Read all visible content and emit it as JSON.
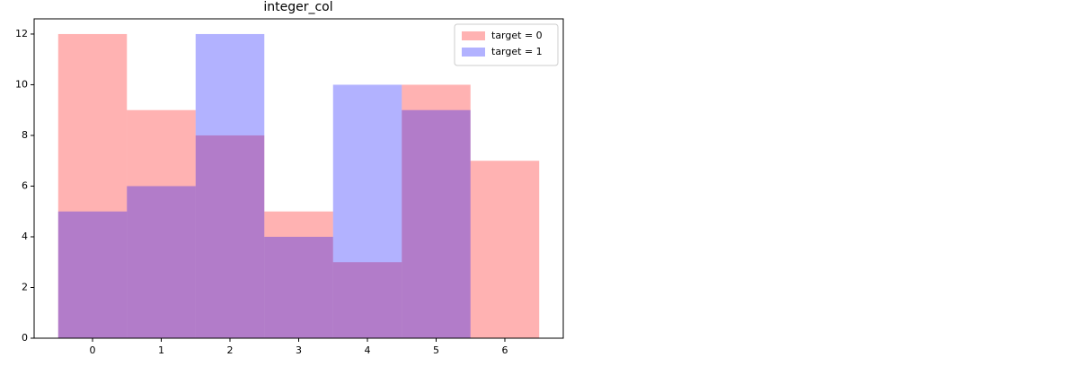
{
  "chart_data": {
    "type": "histogram",
    "title": "integer_col",
    "bins": [
      -0.5,
      0.5,
      1.5,
      2.5,
      3.5,
      4.5,
      5.5,
      6.5
    ],
    "series": [
      {
        "name": "target = 0",
        "color": "#ff0000",
        "values": [
          12,
          9,
          8,
          5,
          3,
          10,
          7
        ]
      },
      {
        "name": "target = 1",
        "color": "#0000ff",
        "values": [
          5,
          6,
          12,
          4,
          10,
          9,
          0
        ]
      }
    ],
    "opacity": 0.3,
    "xlim": [
      -0.85,
      6.85
    ],
    "xticks": [
      0,
      1,
      2,
      3,
      4,
      5,
      6
    ],
    "ylim": [
      0,
      12.6
    ],
    "yticks": [
      0,
      2,
      4,
      6,
      8,
      10,
      12
    ],
    "grid": false,
    "legend": "upper right"
  }
}
